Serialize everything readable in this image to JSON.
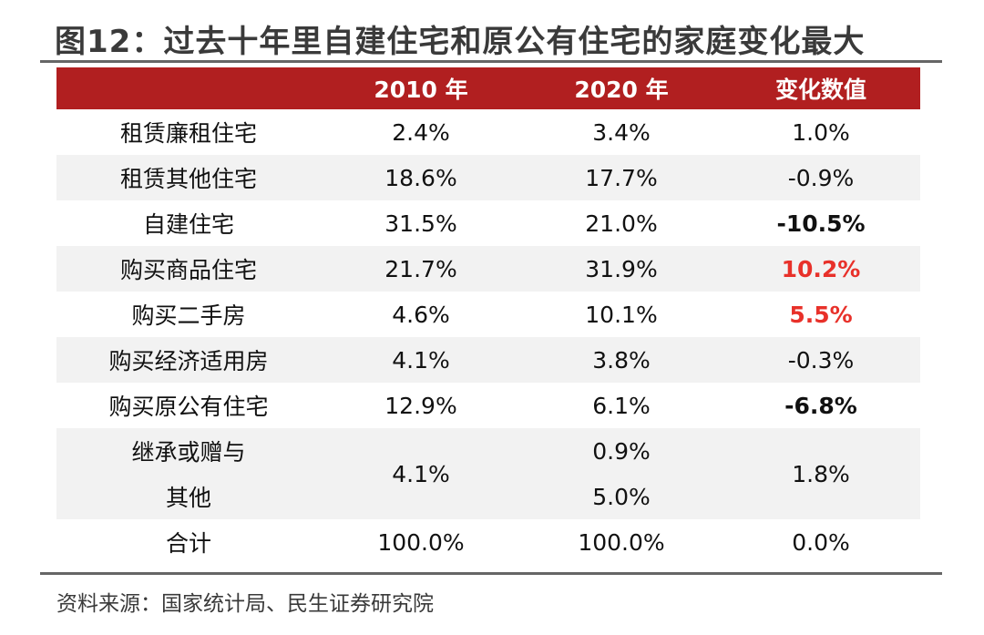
{
  "title": "图12：过去十年里自建住宅和原公有住宅的家庭变化最大",
  "table": {
    "headers": [
      "",
      "2010 年",
      "2020 年",
      "变化数值"
    ],
    "rows": [
      {
        "label": "租赁廉租住宅",
        "y2010": "2.4%",
        "y2020": "3.4%",
        "change": "1.0%",
        "style": "normal"
      },
      {
        "label": "租赁其他住宅",
        "y2010": "18.6%",
        "y2020": "17.7%",
        "change": "-0.9%",
        "style": "normal"
      },
      {
        "label": "自建住宅",
        "y2010": "31.5%",
        "y2020": "21.0%",
        "change": "-10.5%",
        "style": "neg"
      },
      {
        "label": "购买商品住宅",
        "y2010": "21.7%",
        "y2020": "31.9%",
        "change": "10.2%",
        "style": "pos"
      },
      {
        "label": "购买二手房",
        "y2010": "4.6%",
        "y2020": "10.1%",
        "change": "5.5%",
        "style": "pos"
      },
      {
        "label": "购买经济适用房",
        "y2010": "4.1%",
        "y2020": "3.8%",
        "change": "-0.3%",
        "style": "normal"
      },
      {
        "label": "购买原公有住宅",
        "y2010": "12.9%",
        "y2020": "6.1%",
        "change": "-6.8%",
        "style": "neg"
      }
    ],
    "merged_row": {
      "label_line1": "继承或赠与",
      "label_line2": "其他",
      "y2010": "4.1%",
      "y2020_line1": "0.9%",
      "y2020_line2": "5.0%",
      "change": "1.8%"
    },
    "total_row": {
      "label": "合计",
      "y2010": "100.0%",
      "y2020": "100.0%",
      "change": "0.0%"
    }
  },
  "source": "资料来源：国家统计局、民生证券研究院",
  "colors": {
    "header_bg": "#b11f20",
    "positive_change": "#e8312a",
    "stripe": "#f2f2f2"
  }
}
